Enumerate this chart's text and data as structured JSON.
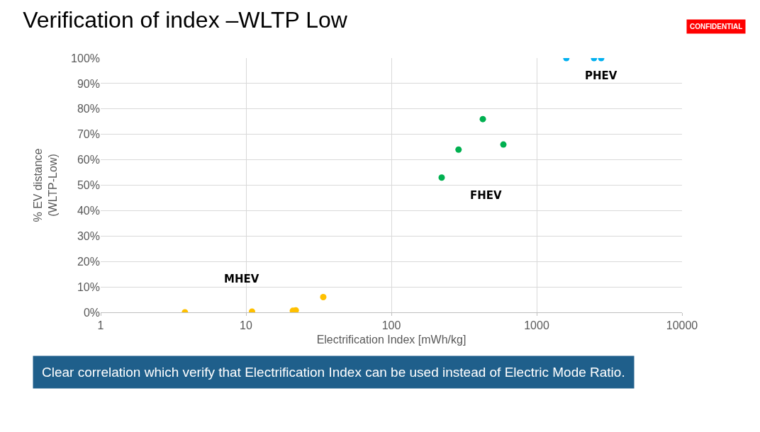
{
  "chart_data": {
    "type": "scatter",
    "title": "Verification of index –WLTP Low",
    "xlabel": "Electrification Index [mWh/kg]",
    "ylabel": "% EV distance\n(WLTP-Low)",
    "annotations": [
      "CONFIDENTIAL",
      "Clear correlation which verify that Electrification Index can be used instead of Electric Mode Ratio."
    ],
    "log": "x",
    "xlim": [
      1,
      10000
    ],
    "xticks": [
      1,
      10,
      100,
      1000,
      10000
    ],
    "ylim": [
      0,
      100
    ],
    "yticks": [
      {
        "value": 0,
        "label": "0%"
      },
      {
        "value": 10,
        "label": "10%"
      },
      {
        "value": 20,
        "label": "20%"
      },
      {
        "value": 30,
        "label": "30%"
      },
      {
        "value": 40,
        "label": "40%"
      },
      {
        "value": 50,
        "label": "50%"
      },
      {
        "value": 60,
        "label": "60%"
      },
      {
        "value": 70,
        "label": "70%"
      },
      {
        "value": 80,
        "label": "80%"
      },
      {
        "value": 90,
        "label": "90%"
      },
      {
        "value": 100,
        "label": "100%"
      }
    ],
    "grid": true,
    "marker": "circle",
    "legend": false,
    "series": [
      {
        "name": "MHEV",
        "color": "#ffc000",
        "x": [
          3.8,
          11,
          21,
          22,
          34
        ],
        "values": [
          0,
          0.3,
          0.6,
          0.8,
          6
        ]
      },
      {
        "name": "FHEV",
        "color": "#00b050",
        "x": [
          222,
          290,
          426,
          590
        ],
        "values": [
          53,
          64,
          76,
          66
        ]
      },
      {
        "name": "PHEV",
        "color": "#00b0f0",
        "x": [
          1600,
          2480,
          2780
        ],
        "values": [
          100,
          100,
          100
        ]
      }
    ]
  }
}
